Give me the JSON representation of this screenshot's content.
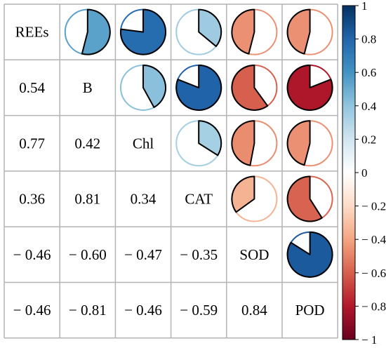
{
  "chart_data": {
    "type": "heatmap",
    "variables": [
      "REEs",
      "B",
      "Chl",
      "CAT",
      "SOD",
      "POD"
    ],
    "lower_values": [
      {
        "row": "B",
        "col": "REEs",
        "label": "0.54"
      },
      {
        "row": "Chl",
        "col": "REEs",
        "label": "0.77"
      },
      {
        "row": "Chl",
        "col": "B",
        "label": "0.42"
      },
      {
        "row": "CAT",
        "col": "REEs",
        "label": "0.36"
      },
      {
        "row": "CAT",
        "col": "B",
        "label": "0.81"
      },
      {
        "row": "CAT",
        "col": "Chl",
        "label": "0.34"
      },
      {
        "row": "SOD",
        "col": "REEs",
        "label": "− 0.46"
      },
      {
        "row": "SOD",
        "col": "B",
        "label": "− 0.60"
      },
      {
        "row": "SOD",
        "col": "Chl",
        "label": "− 0.47"
      },
      {
        "row": "SOD",
        "col": "CAT",
        "label": "− 0.35"
      },
      {
        "row": "POD",
        "col": "REEs",
        "label": "− 0.46"
      },
      {
        "row": "POD",
        "col": "B",
        "label": "− 0.81"
      },
      {
        "row": "POD",
        "col": "Chl",
        "label": "− 0.46"
      },
      {
        "row": "POD",
        "col": "CAT",
        "label": "− 0.59"
      },
      {
        "row": "POD",
        "col": "SOD",
        "label": "0.84"
      }
    ],
    "upper_pies": [
      {
        "row": "REEs",
        "col": "B",
        "value": 0.54
      },
      {
        "row": "REEs",
        "col": "Chl",
        "value": 0.77
      },
      {
        "row": "REEs",
        "col": "CAT",
        "value": 0.36
      },
      {
        "row": "REEs",
        "col": "SOD",
        "value": -0.46
      },
      {
        "row": "REEs",
        "col": "POD",
        "value": -0.46
      },
      {
        "row": "B",
        "col": "Chl",
        "value": 0.42
      },
      {
        "row": "B",
        "col": "CAT",
        "value": 0.81
      },
      {
        "row": "B",
        "col": "SOD",
        "value": -0.6
      },
      {
        "row": "B",
        "col": "POD",
        "value": -0.81
      },
      {
        "row": "Chl",
        "col": "CAT",
        "value": 0.34
      },
      {
        "row": "Chl",
        "col": "SOD",
        "value": -0.47
      },
      {
        "row": "Chl",
        "col": "POD",
        "value": -0.46
      },
      {
        "row": "CAT",
        "col": "SOD",
        "value": -0.35
      },
      {
        "row": "CAT",
        "col": "POD",
        "value": -0.59
      },
      {
        "row": "SOD",
        "col": "POD",
        "value": 0.84
      }
    ],
    "colorbar": {
      "range": [
        -1,
        1
      ],
      "tick_labels": [
        "1",
        "0.8",
        "0.6",
        "0.4",
        "0.2",
        "0",
        "− 0.2",
        "− 0.4",
        "− 0.6",
        "− 0.8",
        "− 1"
      ],
      "tick_values": [
        1,
        0.8,
        0.6,
        0.4,
        0.2,
        0,
        -0.2,
        -0.4,
        -0.6,
        -0.8,
        -1
      ],
      "color_stops": [
        "#053061",
        "#2166ac",
        "#4393c3",
        "#92c5de",
        "#d1e5f0",
        "#ffffff",
        "#fddbc7",
        "#f4a582",
        "#d6604d",
        "#b2182b",
        "#67001f"
      ]
    }
  }
}
